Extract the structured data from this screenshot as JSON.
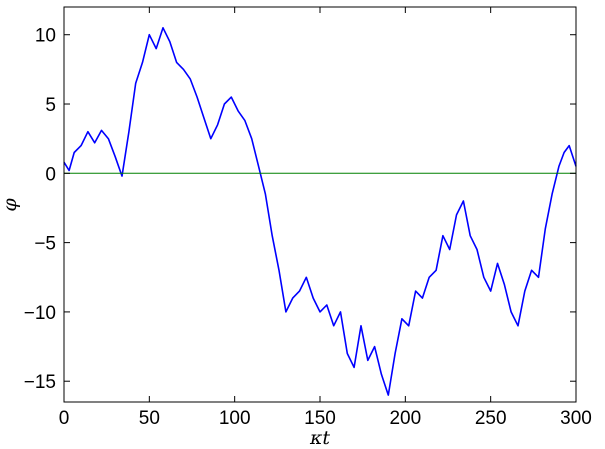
{
  "chart_data": {
    "type": "line",
    "title": "",
    "xlabel": "κt",
    "ylabel": "φ",
    "xlim": [
      0,
      300
    ],
    "ylim": [
      -16.5,
      12
    ],
    "xticks": [
      0,
      50,
      100,
      150,
      200,
      250,
      300
    ],
    "yticks": [
      10,
      5,
      0,
      -5,
      -10,
      -15
    ],
    "xtick_labels": [
      "0",
      "50",
      "100",
      "150",
      "200",
      "250",
      "300"
    ],
    "ytick_labels": [
      "10",
      "5",
      "0",
      "−5",
      "−10",
      "−15"
    ],
    "grid": false,
    "legend": false,
    "series": [
      {
        "color": "#0000ff",
        "x": [
          0,
          3,
          6,
          10,
          14,
          18,
          22,
          26,
          30,
          34,
          38,
          42,
          46,
          50,
          54,
          58,
          62,
          66,
          70,
          74,
          78,
          82,
          86,
          90,
          94,
          98,
          102,
          106,
          110,
          114,
          118,
          122,
          126,
          130,
          134,
          138,
          142,
          146,
          150,
          154,
          158,
          162,
          166,
          170,
          174,
          178,
          182,
          186,
          190,
          194,
          198,
          202,
          206,
          210,
          214,
          218,
          222,
          226,
          230,
          234,
          238,
          242,
          246,
          250,
          254,
          258,
          262,
          266,
          270,
          274,
          278,
          282,
          286,
          290,
          293,
          296,
          300
        ],
        "y": [
          0.8,
          0.2,
          1.5,
          2.0,
          3.0,
          2.2,
          3.1,
          2.5,
          1.2,
          -0.2,
          3.0,
          6.5,
          8.0,
          10.0,
          9.0,
          10.5,
          9.5,
          8.0,
          7.5,
          6.8,
          5.5,
          4.0,
          2.5,
          3.5,
          5.0,
          5.5,
          4.5,
          3.8,
          2.5,
          0.5,
          -1.5,
          -4.5,
          -7.0,
          -10.0,
          -9.0,
          -8.5,
          -7.5,
          -9.0,
          -10.0,
          -9.5,
          -11.0,
          -10.0,
          -13.0,
          -14.0,
          -11.0,
          -13.5,
          -12.5,
          -14.5,
          -16.0,
          -13.0,
          -10.5,
          -11.0,
          -8.5,
          -9.0,
          -7.5,
          -7.0,
          -4.5,
          -5.5,
          -3.0,
          -2.0,
          -4.5,
          -5.5,
          -7.5,
          -8.5,
          -6.5,
          -8.0,
          -10.0,
          -11.0,
          -8.5,
          -7.0,
          -7.5,
          -4.0,
          -1.5,
          0.5,
          1.5,
          2.0,
          0.5
        ]
      },
      {
        "color": "#008000",
        "x": [
          0,
          300
        ],
        "y": [
          0,
          0
        ]
      }
    ]
  }
}
